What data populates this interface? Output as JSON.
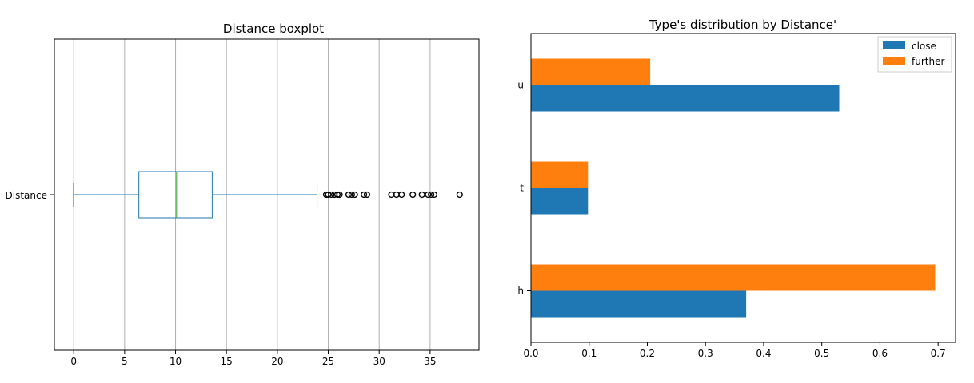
{
  "chart_data": [
    {
      "type": "box",
      "title": "Distance boxplot",
      "category": "Distance",
      "xlim": [
        -1.9,
        39.8
      ],
      "xticks": [
        0,
        5,
        10,
        15,
        20,
        25,
        30,
        35
      ],
      "grid": true,
      "box": {
        "whisker_low": 0,
        "q1": 6.4,
        "median": 10.1,
        "q3": 13.6,
        "whisker_high": 23.9
      },
      "outliers": [
        24.8,
        25.0,
        25.3,
        25.6,
        25.9,
        26.1,
        27.0,
        27.3,
        27.6,
        28.5,
        28.8,
        31.2,
        31.7,
        32.2,
        33.3,
        34.2,
        34.8,
        35.1,
        35.4,
        37.9
      ],
      "colors": {
        "box": "#1f77b4",
        "median": "#2ca02c",
        "outlier": "#000000"
      }
    },
    {
      "type": "bar",
      "orientation": "horizontal",
      "title": "Type's distribution by Distance'",
      "categories": [
        "h",
        "t",
        "u"
      ],
      "series": [
        {
          "name": "close",
          "values": [
            0.37,
            0.098,
            0.53
          ],
          "color": "#1f77b4"
        },
        {
          "name": "further",
          "values": [
            0.695,
            0.098,
            0.205
          ],
          "color": "#ff7f0e"
        }
      ],
      "xlim": [
        0,
        0.73
      ],
      "xticks": [
        "0.0",
        "0.1",
        "0.2",
        "0.3",
        "0.4",
        "0.5",
        "0.6",
        "0.7"
      ],
      "grid": false,
      "legend_position": "top-right"
    }
  ]
}
